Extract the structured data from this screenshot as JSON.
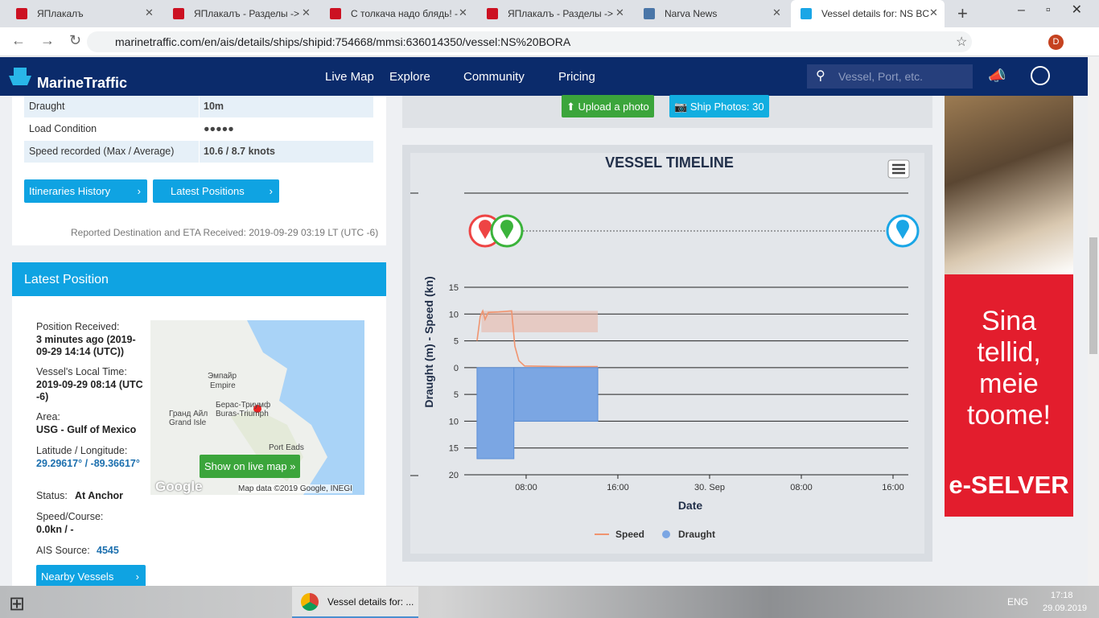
{
  "browser": {
    "tabs": [
      "ЯПлакалъ",
      "ЯПлакалъ - Разделы ->",
      "С толкача надо блядь! -",
      "ЯПлакалъ - Разделы ->",
      "Narva News",
      "Vessel details for: NS BC"
    ],
    "address": "marinetraffic.com/en/ais/details/ships/shipid:754668/mmsi:636014350/vessel:NS%20BORA",
    "profile": "D"
  },
  "nav": {
    "logo": "MarineTraffic",
    "items": [
      "Live Map",
      "Explore",
      "Community",
      "Pricing"
    ],
    "search": "Vessel, Port, etc."
  },
  "details": {
    "rows": [
      [
        "Draught",
        "10m"
      ],
      [
        "Load Condition",
        "●●●●●"
      ],
      [
        "Speed recorded (Max / Average)",
        "10.6 / 8.7 knots"
      ]
    ],
    "buttons": [
      "Itineraries History",
      "Latest Positions"
    ],
    "note": "Reported Destination and ETA Received: 2019-09-29 03:19 LT (UTC -6)"
  },
  "latest_position": {
    "title": "Latest Position",
    "fields": [
      [
        "Position Received:",
        "3 minutes ago (2019-09-29 14:14 (UTC))"
      ],
      [
        "Vessel's Local Time:",
        "2019-09-29 08:14 (UTC -6)"
      ],
      [
        "Area:",
        "USG - Gulf of Mexico"
      ],
      [
        "Latitude / Longitude:",
        "29.29617° / -89.36617°"
      ],
      [
        "Status:",
        "At Anchor"
      ],
      [
        "Speed/Course:",
        "0.0kn / -"
      ],
      [
        "AIS Source:",
        "4545"
      ]
    ],
    "map": {
      "labels": [
        "Эмпайр",
        "Empire",
        "Берас-Триумф",
        "Buras-Triumph",
        "Гранд Айл",
        "Grand Isle",
        "Port Eads"
      ],
      "button": "Show on live map",
      "logo": "Google",
      "credit": "Map data ©2019 Google, INEGI"
    },
    "nearby": "Nearby Vessels"
  },
  "photos": {
    "upload": "Upload a photo",
    "count": "Ship Photos: 30"
  },
  "chart_data": {
    "type": "line",
    "title": "VESSEL TIMELINE",
    "y_label": "Draught (m) - Speed (kn)",
    "x_label": "Date",
    "xlim": [
      "09-29T02:36",
      "09-30T17:20"
    ],
    "ylim": [
      -20,
      15
    ],
    "yticks": [
      15,
      10,
      5,
      0,
      {
        "value": -5,
        "label": "5"
      },
      {
        "value": -10,
        "label": "10"
      },
      {
        "value": -15,
        "label": "15"
      },
      {
        "value": -20,
        "label": "20"
      }
    ],
    "xticks": [
      {
        "value": "09-29T08:00",
        "label": "08:00"
      },
      {
        "value": "09-29T16:00",
        "label": "16:00"
      },
      {
        "value": "09-30T00:00",
        "label": "30. Sep"
      },
      {
        "value": "09-30T08:00",
        "label": "08:00"
      },
      {
        "value": "09-30T16:00",
        "label": "16:00"
      }
    ],
    "grid": true,
    "series": [
      {
        "name": "Speed",
        "color": "#f0946f",
        "x": [
          "09-29T03:43",
          "09-29T04:00",
          "09-29T04:13",
          "09-29T04:25",
          "09-29T04:42",
          "09-29T05:36",
          "09-29T06:44",
          "09-29T07:01",
          "09-29T07:22",
          "09-29T07:52",
          "09-29T11:14",
          "09-29T14:15"
        ],
        "values": [
          5,
          9.6,
          10.6,
          9,
          10.3,
          10.4,
          10.6,
          4,
          1.3,
          0.3,
          0.2,
          0.2
        ]
      },
      {
        "name": "Draught",
        "color": "#7ba6e3",
        "direction": "down",
        "x": [
          "09-29T03:43",
          "09-29T06:56"
        ],
        "x_end": [
          "09-29T06:56",
          "09-29T14:15"
        ],
        "values": [
          17,
          10
        ]
      }
    ],
    "speed_range": {
      "x": [
        "09-29T04:06",
        "09-29T14:15"
      ],
      "low": 6.6,
      "high": 10.6
    }
  },
  "ad": {
    "lines": [
      "Sina",
      "tellid,",
      "meie",
      "toome!"
    ],
    "brand": "e-SELVER"
  },
  "taskbar": {
    "window": "Vessel details for: ...",
    "lang": "ENG",
    "time": "17:18",
    "date": "29.09.2019"
  }
}
